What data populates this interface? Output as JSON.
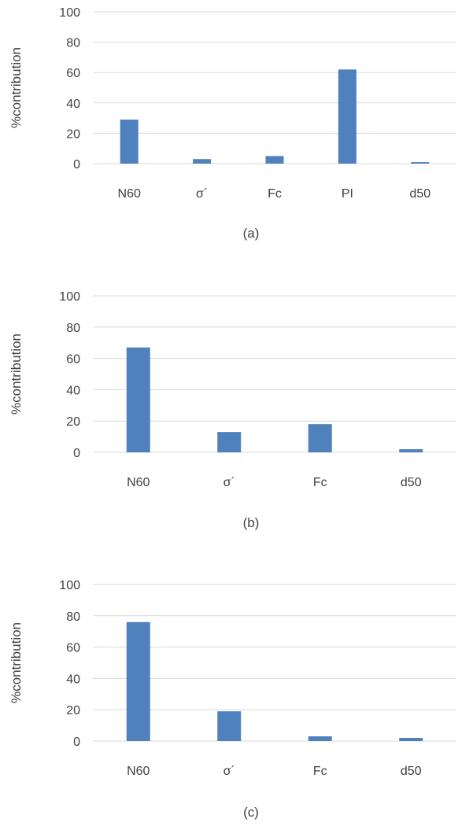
{
  "chart_data": [
    {
      "type": "bar",
      "caption": "(a)",
      "categories": [
        "N60",
        "σ´",
        "Fc",
        "PI",
        "d50"
      ],
      "values": [
        29,
        3,
        5,
        62,
        1
      ],
      "ylabel": "%contribution",
      "ylim": [
        0,
        100
      ],
      "yticks": [
        0,
        20,
        40,
        60,
        80,
        100
      ],
      "grid": true,
      "bar_color": "#4f81bd"
    },
    {
      "type": "bar",
      "caption": "(b)",
      "categories": [
        "N60",
        "σ´",
        "Fc",
        "d50"
      ],
      "values": [
        67,
        13,
        18,
        2
      ],
      "ylabel": "%contribution",
      "ylim": [
        0,
        100
      ],
      "yticks": [
        0,
        20,
        40,
        60,
        80,
        100
      ],
      "grid": true,
      "bar_color": "#4f81bd"
    },
    {
      "type": "bar",
      "caption": "(c)",
      "categories": [
        "N60",
        "σ´",
        "Fc",
        "d50"
      ],
      "values": [
        76,
        19,
        3,
        2
      ],
      "ylabel": "%contribution",
      "ylim": [
        0,
        100
      ],
      "yticks": [
        0,
        20,
        40,
        60,
        80,
        100
      ],
      "grid": true,
      "bar_color": "#4f81bd"
    }
  ]
}
